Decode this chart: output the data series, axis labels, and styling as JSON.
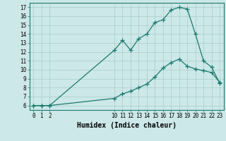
{
  "xlabel": "Humidex (Indice chaleur)",
  "bg_color": "#cce8e8",
  "line_color": "#1a7a6e",
  "grid_color": "#aacccc",
  "grid_minor_color": "#bbdddd",
  "line1_x": [
    0,
    1,
    2,
    10,
    11,
    12,
    13,
    14,
    15,
    16,
    17,
    18,
    19,
    20,
    21,
    22,
    23
  ],
  "line1_y": [
    6,
    6,
    6,
    12.2,
    13.3,
    12.2,
    13.5,
    14.0,
    15.3,
    15.6,
    16.7,
    17.0,
    16.8,
    14.0,
    11.0,
    10.3,
    8.5
  ],
  "line2_x": [
    0,
    1,
    2,
    10,
    11,
    12,
    13,
    14,
    15,
    16,
    17,
    18,
    19,
    20,
    21,
    22,
    23
  ],
  "line2_y": [
    6,
    6,
    6,
    6.8,
    7.3,
    7.6,
    8.0,
    8.4,
    9.2,
    10.2,
    10.8,
    11.2,
    10.4,
    10.1,
    9.9,
    9.7,
    8.6
  ],
  "xmin": -0.5,
  "xmax": 23.5,
  "ymin": 5.5,
  "ymax": 17.5,
  "xticks": [
    0,
    1,
    2,
    10,
    11,
    12,
    13,
    14,
    15,
    16,
    17,
    18,
    19,
    20,
    21,
    22,
    23
  ],
  "yticks": [
    6,
    7,
    8,
    9,
    10,
    11,
    12,
    13,
    14,
    15,
    16,
    17
  ],
  "marker": "+",
  "markersize": 4,
  "linewidth": 0.9
}
